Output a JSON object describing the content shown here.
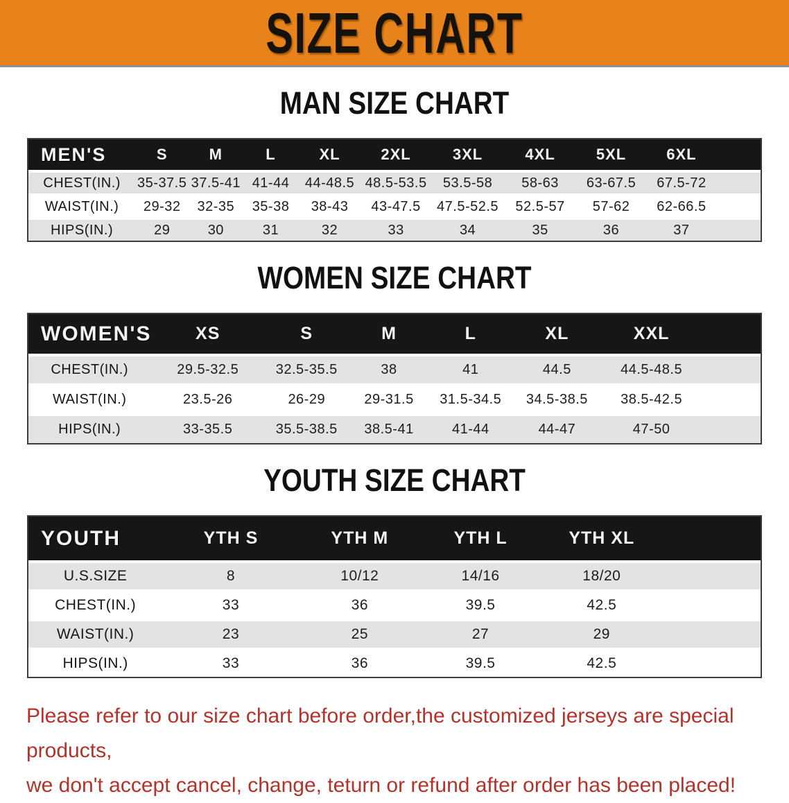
{
  "colors": {
    "banner_bg": "#E8821A",
    "table_header_bg": "#161616",
    "row_alt_bg": "#e3e3e3",
    "disclaimer_text": "#b1332b"
  },
  "banner": {
    "title": "SIZE CHART"
  },
  "sections": [
    {
      "id": "men",
      "css": "grid-men",
      "heading": "MAN SIZE CHART",
      "table": {
        "header": [
          "MEN'S",
          "S",
          "M",
          "L",
          "XL",
          "2XL",
          "3XL",
          "4XL",
          "5XL",
          "6XL"
        ],
        "rows": [
          [
            "CHEST(IN.)",
            "35-37.5",
            "37.5-41",
            "41-44",
            "44-48.5",
            "48.5-53.5",
            "53.5-58",
            "58-63",
            "63-67.5",
            "67.5-72"
          ],
          [
            "WAIST(IN.)",
            "29-32",
            "32-35",
            "35-38",
            "38-43",
            "43-47.5",
            "47.5-52.5",
            "52.5-57",
            "57-62",
            "62-66.5"
          ],
          [
            "HIPS(IN.)",
            "29",
            "30",
            "31",
            "32",
            "33",
            "34",
            "35",
            "36",
            "37"
          ]
        ]
      }
    },
    {
      "id": "women",
      "css": "grid-women",
      "heading": "WOMEN SIZE CHART",
      "table": {
        "header": [
          "WOMEN'S",
          "XS",
          "S",
          "M",
          "L",
          "XL",
          "XXL"
        ],
        "rows": [
          [
            "CHEST(IN.)",
            "29.5-32.5",
            "32.5-35.5",
            "38",
            "41",
            "44.5",
            "44.5-48.5"
          ],
          [
            "WAIST(IN.)",
            "23.5-26",
            "26-29",
            "29-31.5",
            "31.5-34.5",
            "34.5-38.5",
            "38.5-42.5"
          ],
          [
            "HIPS(IN.)",
            "33-35.5",
            "35.5-38.5",
            "38.5-41",
            "41-44",
            "44-47",
            "47-50"
          ]
        ]
      }
    },
    {
      "id": "youth",
      "css": "grid-youth",
      "heading": "YOUTH SIZE CHART",
      "table": {
        "header": [
          "YOUTH",
          "YTH S",
          "YTH M",
          "YTH L",
          "YTH XL"
        ],
        "rows": [
          [
            "U.S.SIZE",
            "8",
            "10/12",
            "14/16",
            "18/20"
          ],
          [
            "CHEST(IN.)",
            "33",
            "36",
            "39.5",
            "42.5"
          ],
          [
            "WAIST(IN.)",
            "23",
            "25",
            "27",
            "29"
          ],
          [
            "HIPS(IN.)",
            "33",
            "36",
            "39.5",
            "42.5"
          ]
        ]
      }
    }
  ],
  "disclaimer": {
    "line1": "Please refer to our size chart before order,the customized jerseys are special products,",
    "line2": "we don't accept cancel, change, teturn or refund after order has been placed!"
  }
}
